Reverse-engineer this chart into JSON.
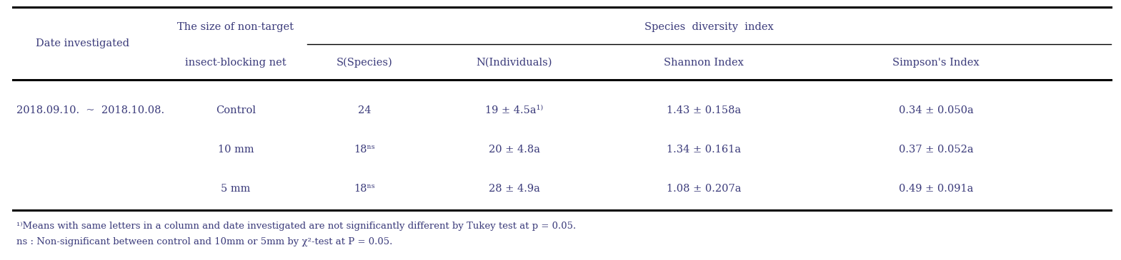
{
  "col_headers_line1_left": "Date investigated",
  "col_headers_line1_mid": "The size of non-target",
  "col_headers_line1_span": "Species  diversity  index",
  "col_headers_line2_mid": "insect-blocking net",
  "col_headers_line2": [
    "S(Species)",
    "N(Individuals)",
    "Shannon Index",
    "Simpson's Index"
  ],
  "rows": [
    [
      "2018.09.10.  ~  2018.10.08.",
      "Control",
      "24",
      "19 ± 4.5a¹⧠",
      "1.43 ± 0.158a",
      "0.34 ± 0.050a"
    ],
    [
      "",
      "10 mm",
      "18ⁿˢ",
      "20 ± 4.8a",
      "1.34 ± 0.161a",
      "0.37 ± 0.052a"
    ],
    [
      "",
      "5 mm",
      "18ⁿˢ",
      "28 ± 4.9a",
      "1.08 ± 0.207a",
      "0.49 ± 0.091a"
    ]
  ],
  "row2_col3": "19 ± 4.5a¹⁾",
  "footnote1": "¹⁾Means with same letters in a column and date investigated are not significantly different by Tukey test at p = 0.05.",
  "footnote2": "ns : Non-significant between control and 10mm or 5mm by χ²-test at P = 0.05.",
  "text_color": "#3a3a7a",
  "bg_color": "#ffffff",
  "fs_header": 10.5,
  "fs_cell": 10.5,
  "fs_footnote": 9.5
}
